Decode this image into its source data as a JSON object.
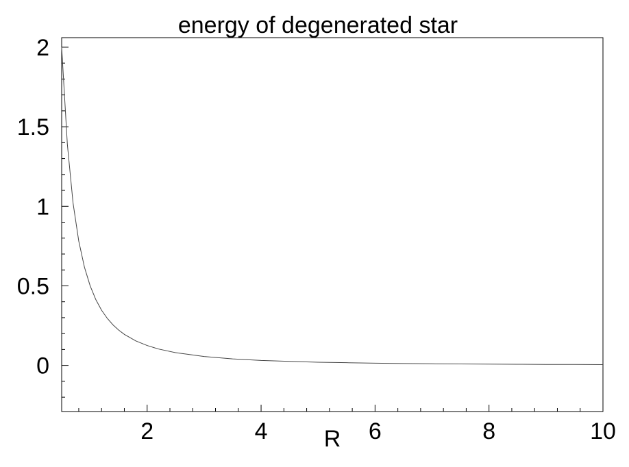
{
  "chart_data": {
    "type": "line",
    "title": "energy of degenerated star",
    "xlabel": "R",
    "ylabel": "",
    "xlim": [
      0.5,
      10
    ],
    "ylim": [
      -0.29,
      2.06
    ],
    "x_ticks": [
      2,
      4,
      6,
      8,
      10
    ],
    "x_tick_labels": [
      "2",
      "4",
      "6",
      "8",
      "10"
    ],
    "y_ticks": [
      0,
      0.5,
      1,
      1.5,
      2
    ],
    "y_tick_labels": [
      "0",
      "0.5",
      "1",
      "1.5",
      "2"
    ],
    "grid": false,
    "series": [
      {
        "color": "#444444",
        "x": [
          0.5,
          0.6,
          0.7,
          0.8,
          0.9,
          1.0,
          1.1,
          1.2,
          1.3,
          1.4,
          1.5,
          1.6,
          1.8,
          2.0,
          2.2,
          2.5,
          3.0,
          3.5,
          4.0,
          4.5,
          5.0,
          5.5,
          6.0,
          6.5,
          7.0,
          7.5,
          8.0,
          8.5,
          9.0,
          9.5,
          10.0
        ],
        "y": [
          2.0,
          1.389,
          1.02,
          0.781,
          0.617,
          0.5,
          0.413,
          0.347,
          0.296,
          0.255,
          0.222,
          0.195,
          0.154,
          0.125,
          0.103,
          0.08,
          0.056,
          0.041,
          0.031,
          0.025,
          0.02,
          0.017,
          0.014,
          0.012,
          0.01,
          0.009,
          0.008,
          0.007,
          0.006,
          0.006,
          0.005
        ]
      }
    ]
  }
}
